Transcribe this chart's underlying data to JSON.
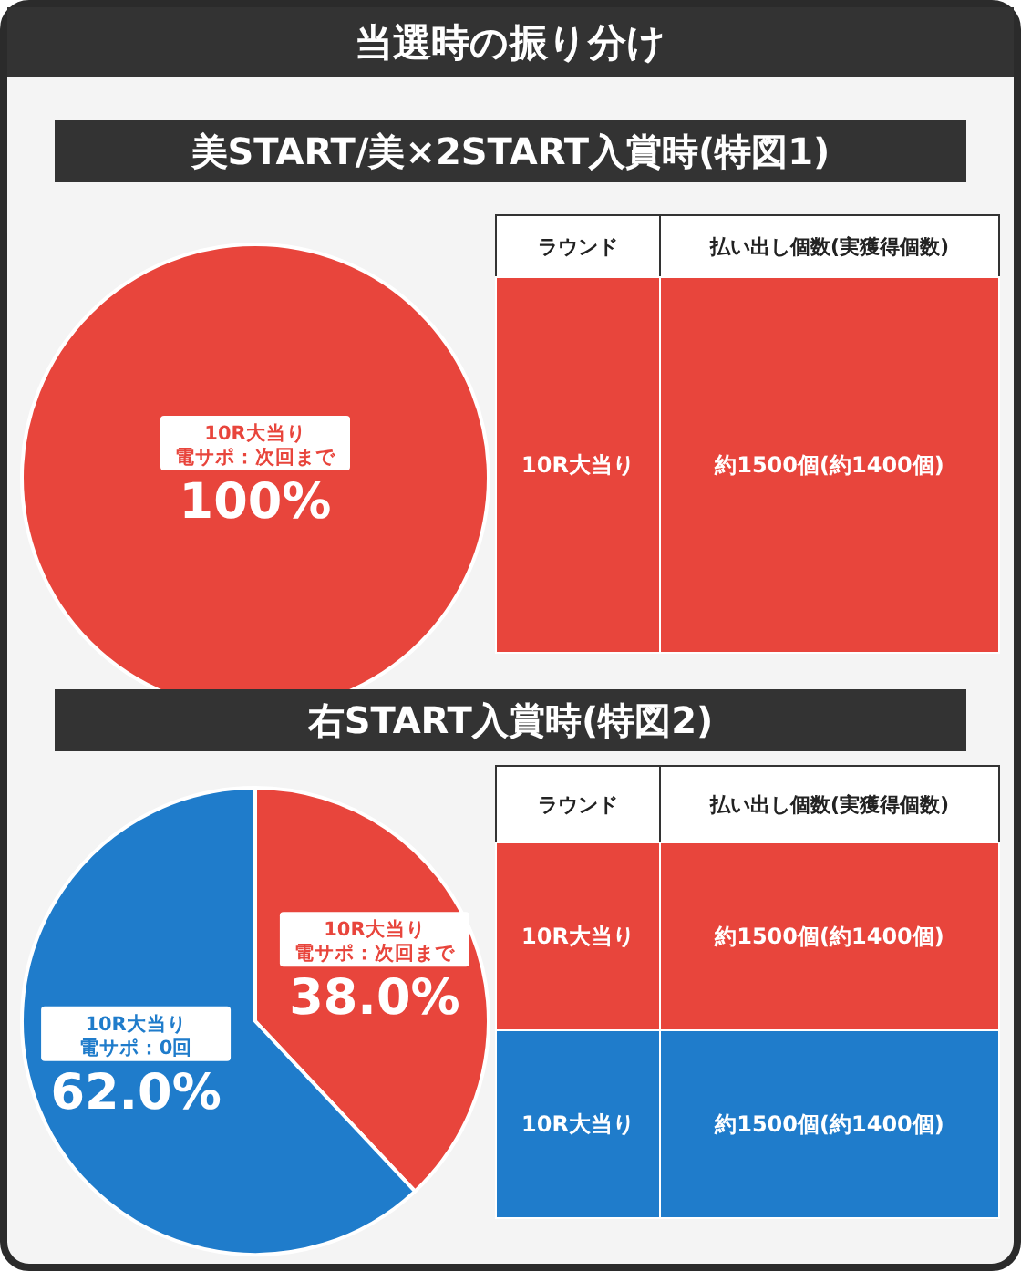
{
  "chart_data": [
    {
      "type": "other",
      "title": "当選時の振り分け"
    },
    {
      "type": "pie",
      "title": "美START/美×2START入賞時(特図1)",
      "categories": [
        "10R大当り電サポ：次回まで"
      ],
      "values": [
        100
      ],
      "colors": [
        "#e8453c"
      ],
      "value_labels": [
        "100%"
      ]
    },
    {
      "type": "other",
      "annotations": [
        "ラウンド",
        "払い出し個数(実獲得個数)"
      ],
      "cell_labels": [
        [
          "10R大当り",
          "約1500個(約1400個)"
        ]
      ],
      "colors": [
        "#e8453c"
      ]
    },
    {
      "type": "pie",
      "title": "右START入賞時(特図2)",
      "categories": [
        "10R大当り電サポ：次回まで",
        "10R大当り電サポ：0回"
      ],
      "values": [
        38.0,
        62.0
      ],
      "colors": [
        "#e8453c",
        "#1f7ccb"
      ],
      "value_labels": [
        "38.0%",
        "62.0%"
      ]
    },
    {
      "type": "other",
      "annotations": [
        "ラウンド",
        "払い出し個数(実獲得個数)"
      ],
      "cell_labels": [
        [
          "10R大当り",
          "約1500個(約1400個)"
        ],
        [
          "10R大当り",
          "約1500個(約1400個)"
        ]
      ],
      "colors": [
        "#e8453c",
        "#1f7ccb"
      ]
    }
  ]
}
